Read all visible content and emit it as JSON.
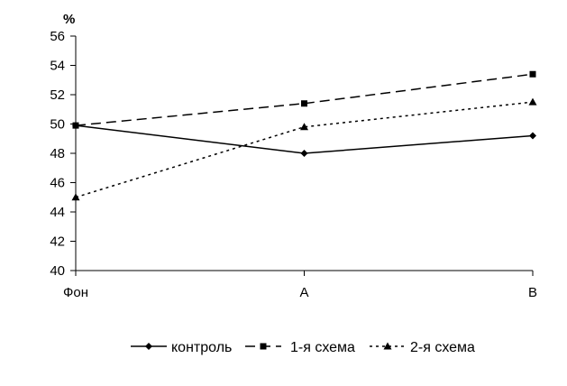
{
  "chart_data": {
    "type": "line",
    "categories": [
      "Фон",
      "A",
      "B"
    ],
    "series": [
      {
        "name": "контроль",
        "values": [
          49.9,
          48.0,
          49.2
        ],
        "style": "solid",
        "marker": "diamond"
      },
      {
        "name": "1-я схема",
        "values": [
          49.9,
          51.4,
          53.4
        ],
        "style": "dashed",
        "marker": "square"
      },
      {
        "name": "2-я схема",
        "values": [
          45.0,
          49.8,
          51.5
        ],
        "style": "dotted",
        "marker": "triangle"
      }
    ],
    "title": "",
    "xlabel": "",
    "ylabel": "%",
    "ylim": [
      40,
      56
    ],
    "yticks": [
      40,
      42,
      44,
      46,
      48,
      50,
      52,
      54,
      56
    ],
    "grid": false,
    "legend_position": "bottom",
    "colors": {
      "line": "#000000",
      "background": "#ffffff"
    }
  }
}
